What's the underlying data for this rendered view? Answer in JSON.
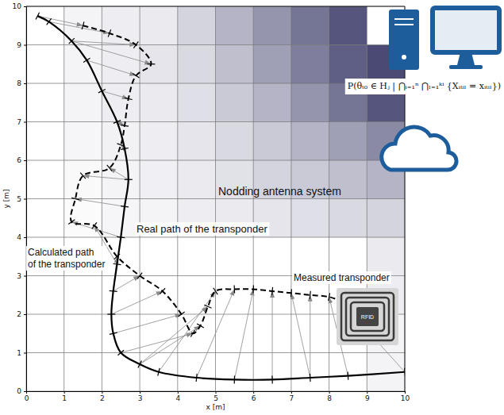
{
  "chart_data": {
    "type": "line",
    "x_label": "x [m]",
    "y_label": "y [m]",
    "xlim": [
      0,
      10
    ],
    "ylim": [
      0,
      10
    ],
    "xticks": [
      0,
      1,
      2,
      3,
      4,
      5,
      6,
      7,
      8,
      9,
      10
    ],
    "yticks": [
      0,
      1,
      2,
      3,
      4,
      5,
      6,
      7,
      8,
      9,
      10
    ],
    "grid": true,
    "cells": {
      "color": "#2a2a5c",
      "values": [
        [
          0,
          0,
          0,
          0,
          0,
          0,
          0,
          0,
          0,
          0.05
        ],
        [
          0,
          0,
          0,
          0,
          0,
          0,
          0,
          0,
          0,
          0.05
        ],
        [
          0,
          0,
          0,
          0,
          0,
          0,
          0,
          0,
          0,
          0.08
        ],
        [
          0,
          0,
          0,
          0,
          0,
          0,
          0,
          0,
          0,
          0.1
        ],
        [
          0,
          0.02,
          0.04,
          0.05,
          0.08,
          0.1,
          0.12,
          0.15,
          0.18,
          0.2
        ],
        [
          0,
          0.03,
          0.05,
          0.07,
          0.1,
          0.14,
          0.2,
          0.25,
          0.3,
          0.35
        ],
        [
          0,
          0.04,
          0.06,
          0.08,
          0.12,
          0.18,
          0.25,
          0.35,
          0.45,
          0.55
        ],
        [
          0,
          0.05,
          0.08,
          0.1,
          0.15,
          0.25,
          0.35,
          0.5,
          0.65,
          0.8
        ],
        [
          0,
          0.05,
          0.08,
          0.12,
          0.18,
          0.3,
          0.45,
          0.6,
          0.75,
          0.85
        ],
        [
          0,
          0.05,
          0.08,
          0.1,
          0.2,
          0.35,
          0.5,
          0.65,
          0.8,
          0
        ]
      ]
    },
    "series": [
      {
        "name": "Real path of the transponder",
        "color": "#000000",
        "line_style": "solid",
        "marker": "tick",
        "x": [
          0.3,
          0.6,
          1.2,
          1.6,
          2.0,
          2.4,
          2.6,
          2.7,
          2.6,
          2.5,
          2.4,
          2.3,
          2.25,
          2.3,
          2.5,
          3.0,
          3.5,
          4.5,
          5.5,
          6.5,
          7.5,
          8.5,
          10
        ],
        "values": [
          9.75,
          9.6,
          9.1,
          8.6,
          7.8,
          7.0,
          6.3,
          5.5,
          4.8,
          4.0,
          3.3,
          2.6,
          2.0,
          1.5,
          1.0,
          0.7,
          0.5,
          0.35,
          0.3,
          0.3,
          0.35,
          0.4,
          0.5
        ]
      },
      {
        "name": "Calculated path of the transponder",
        "color": "#000000",
        "line_style": "dashed",
        "marker": "tick",
        "x": [
          1.5,
          2.2,
          2.9,
          3.3,
          2.9,
          2.7,
          2.6,
          2.5,
          2.2,
          1.5,
          1.3,
          1.2,
          1.8,
          2.4,
          3.0,
          3.6,
          4.1,
          4.4,
          4.6,
          4.8,
          5.0,
          5.5,
          6.0,
          6.5,
          7.0,
          7.5,
          8.0,
          8.3
        ],
        "values": [
          9.5,
          9.3,
          9.0,
          8.5,
          8.2,
          7.6,
          6.9,
          6.4,
          5.8,
          5.6,
          5.0,
          4.4,
          4.3,
          3.5,
          3.0,
          2.6,
          2.0,
          1.5,
          1.7,
          2.2,
          2.6,
          2.65,
          2.65,
          2.6,
          2.55,
          2.5,
          2.45,
          2.35
        ]
      }
    ],
    "annotations": [
      "Nodding antenna system",
      "Measured transponder",
      "RFID",
      "P(θₜ₀ ∈ Hⱼ | ⋂ᵢ₌₁ⁿ ⋂ₗ₌₁ᵏⁱ {Xᵢₜᵢₗ = xᵢₜᵢₗ})"
    ]
  }
}
